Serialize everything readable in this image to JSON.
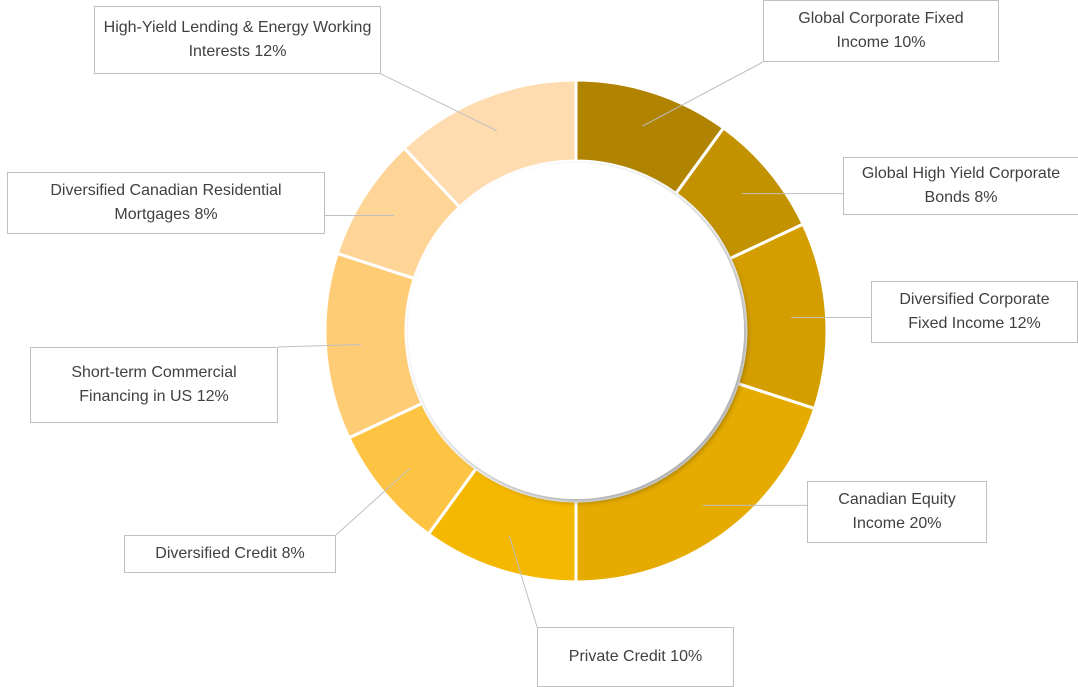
{
  "chart_data": {
    "type": "donut",
    "categories": [
      "Global Corporate Fixed Income",
      "Global High Yield Corporate Bonds",
      "Diversified Corporate Fixed Income",
      "Canadian Equity Income",
      "Private Credit",
      "Diversified Credit",
      "Short-term Commercial Financing in US",
      "Diversified Canadian Residential Mortgages",
      "High-Yield Lending & Energy Working Interests"
    ],
    "values": [
      10,
      8,
      12,
      20,
      10,
      8,
      12,
      8,
      12
    ],
    "value_labels": [
      "10%",
      "8%",
      "12%",
      "20%",
      "10%",
      "8%",
      "12%",
      "8%",
      "12%"
    ],
    "colors": [
      "#b08300",
      "#c39200",
      "#d49e00",
      "#e5ab00",
      "#f5b800",
      "#fdc443",
      "#fecc75",
      "#fed596",
      "#fedcb0"
    ]
  }
}
